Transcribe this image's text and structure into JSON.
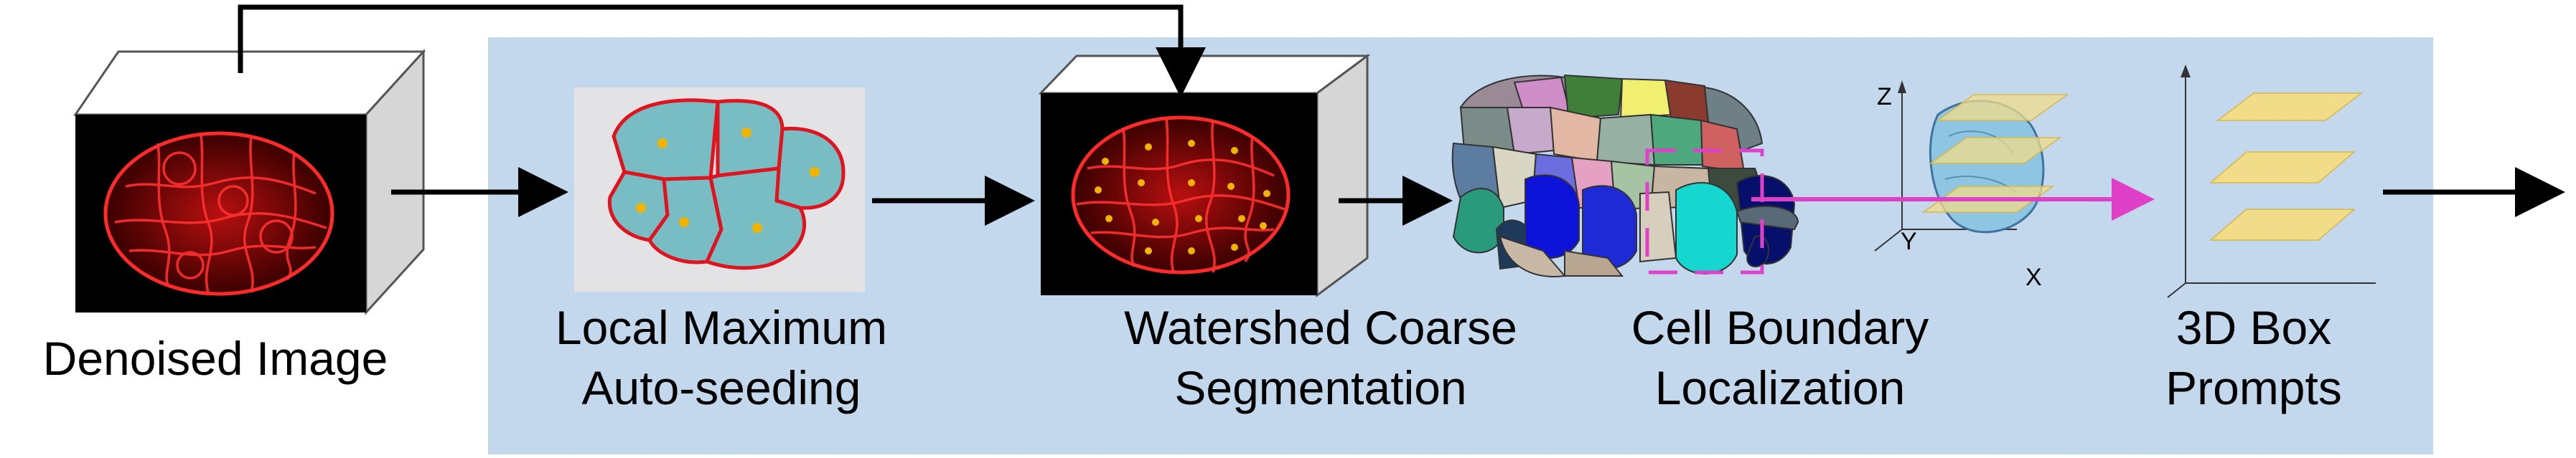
{
  "stages": [
    {
      "id": "denoised",
      "line1": "Denoised Image",
      "line2": ""
    },
    {
      "id": "seeding",
      "line1": "Local Maximum",
      "line2": "Auto-seeding"
    },
    {
      "id": "watershed",
      "line1": "Watershed Coarse",
      "line2": "Segmentation"
    },
    {
      "id": "boundary",
      "line1": "Cell Boundary",
      "line2": "Localization"
    },
    {
      "id": "prompts",
      "line1": "3D Box",
      "line2": "Prompts"
    }
  ],
  "axes": {
    "z": "Z",
    "y": "Y",
    "x": "X"
  },
  "colors": {
    "panel": "#c3d8ec",
    "arrow": "#000000",
    "magenta": "#e040c8",
    "cell_fill": "#78bcc4",
    "cell_edge": "#e0141e",
    "seed": "#f0b400",
    "plane": "#f1dc8a"
  }
}
